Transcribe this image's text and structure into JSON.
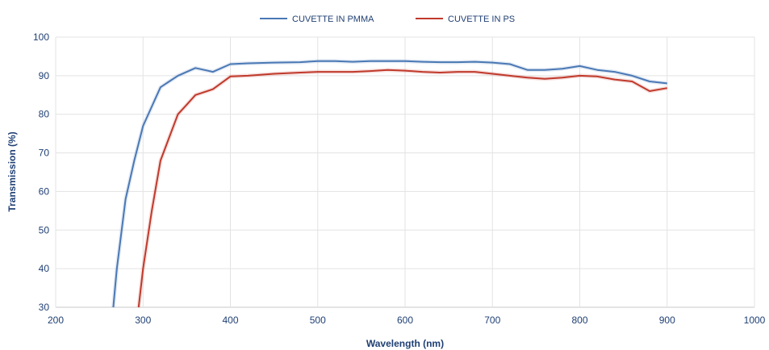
{
  "chart_data": {
    "type": "line",
    "xlabel": "Wavelength (nm)",
    "ylabel": "Transmission (%)",
    "xlim": [
      200,
      1000
    ],
    "ylim": [
      30,
      100
    ],
    "xticks": [
      200,
      300,
      400,
      500,
      600,
      700,
      800,
      900,
      1000
    ],
    "yticks": [
      30,
      40,
      50,
      60,
      70,
      80,
      90,
      100
    ],
    "grid": true,
    "legend": "top-center",
    "series": [
      {
        "name": "CUVETTE IN PMMA",
        "color": "#4a78b5",
        "x": [
          266,
          270,
          280,
          290,
          300,
          310,
          320,
          330,
          340,
          360,
          380,
          400,
          420,
          450,
          480,
          500,
          520,
          540,
          560,
          580,
          600,
          620,
          640,
          660,
          680,
          700,
          720,
          740,
          760,
          780,
          800,
          820,
          840,
          860,
          880,
          900
        ],
        "y": [
          30,
          40,
          58,
          68,
          77,
          82,
          87,
          88.5,
          90,
          92,
          91,
          93,
          93.2,
          93.4,
          93.5,
          93.8,
          93.8,
          93.6,
          93.8,
          93.8,
          93.8,
          93.6,
          93.5,
          93.5,
          93.6,
          93.4,
          93,
          91.5,
          91.5,
          91.8,
          92.5,
          91.5,
          91,
          90,
          88.5,
          88
        ]
      },
      {
        "name": "CUVETTE IN PS",
        "color": "#c0392b",
        "x": [
          295,
          300,
          310,
          320,
          330,
          340,
          350,
          360,
          380,
          400,
          420,
          450,
          480,
          500,
          520,
          540,
          560,
          580,
          600,
          620,
          640,
          660,
          680,
          700,
          720,
          740,
          760,
          780,
          800,
          820,
          840,
          860,
          880,
          900
        ],
        "y": [
          30,
          40,
          55,
          68,
          74,
          80,
          82.5,
          85,
          86.5,
          89.8,
          90,
          90.5,
          90.8,
          91,
          91,
          91,
          91.2,
          91.5,
          91.3,
          91,
          90.8,
          91,
          91,
          90.5,
          90,
          89.5,
          89.2,
          89.5,
          90,
          89.8,
          89,
          88.5,
          86,
          86.8
        ]
      }
    ]
  }
}
